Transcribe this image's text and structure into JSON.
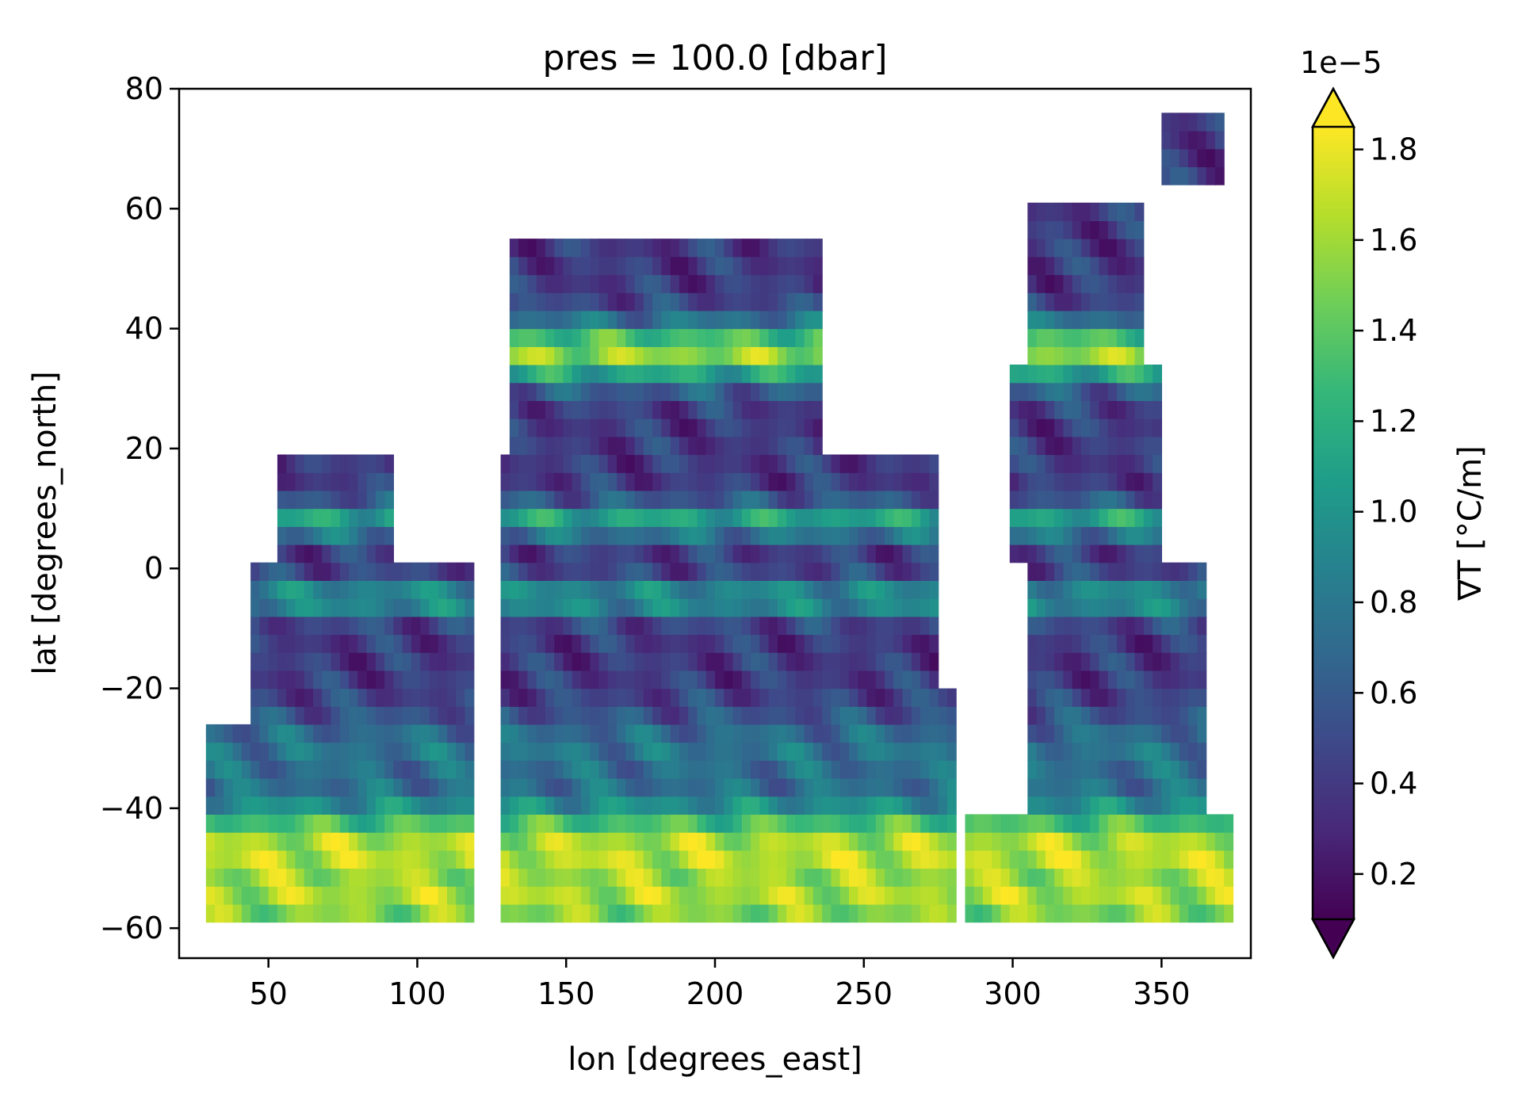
{
  "chart_data": {
    "type": "heatmap",
    "title": "pres = 100.0 [dbar]",
    "xlabel": "lon [degrees_east]",
    "ylabel": "lat [degrees_north]",
    "xlim": [
      20,
      380
    ],
    "ylim": [
      -65,
      80
    ],
    "xticks": [
      50,
      100,
      150,
      200,
      250,
      300,
      350
    ],
    "xtick_labels": [
      "50",
      "100",
      "150",
      "200",
      "250",
      "300",
      "350"
    ],
    "yticks": [
      80,
      60,
      40,
      20,
      0,
      -20,
      -40,
      -60
    ],
    "ytick_labels": [
      "80",
      "60",
      "40",
      "20",
      "0",
      "−20",
      "−40",
      "−60"
    ],
    "colorbar": {
      "label": "∇T [°C/m]",
      "multiplier": "1e−5",
      "range": [
        0.1,
        1.85
      ],
      "extend": "both",
      "colormap": "viridis",
      "ticks": [
        0.2,
        0.4,
        0.6,
        0.8,
        1.0,
        1.2,
        1.4,
        1.6,
        1.8
      ],
      "tick_labels": [
        "0.2",
        "0.4",
        "0.6",
        "0.8",
        "1.0",
        "1.2",
        "1.4",
        "1.6",
        "1.8"
      ]
    },
    "colormap_stops": [
      "#440154",
      "#482878",
      "#3e4989",
      "#31688e",
      "#26828e",
      "#1f9e89",
      "#35b779",
      "#6ece58",
      "#b5de2b",
      "#fde725"
    ],
    "grid": false,
    "field": {
      "lon_step": 3,
      "lat_step": 3,
      "regions": [
        {
          "lon": [
            30,
            120
          ],
          "lat": [
            -60,
            -25
          ]
        },
        {
          "lon": [
            45,
            118
          ],
          "lat": [
            -25,
            0
          ]
        },
        {
          "lon": [
            52,
            92
          ],
          "lat": [
            0,
            20
          ]
        },
        {
          "lon": [
            128,
            275
          ],
          "lat": [
            -60,
            20
          ]
        },
        {
          "lon": [
            130,
            235
          ],
          "lat": [
            20,
            55
          ]
        },
        {
          "lon": [
            152,
            282
          ],
          "lat": [
            -60,
            -20
          ]
        },
        {
          "lon": [
            285,
            375
          ],
          "lat": [
            -60,
            -40
          ]
        },
        {
          "lon": [
            305,
            365
          ],
          "lat": [
            -40,
            0
          ]
        },
        {
          "lon": [
            298,
            350
          ],
          "lat": [
            0,
            35
          ]
        },
        {
          "lon": [
            305,
            345
          ],
          "lat": [
            35,
            60
          ]
        },
        {
          "lon": [
            350,
            370
          ],
          "lat": [
            65,
            75
          ]
        }
      ],
      "bands": [
        {
          "lat": -47,
          "width": 8,
          "value": 1.8
        },
        {
          "lat": -57,
          "width": 5,
          "value": 1.4
        },
        {
          "lat": 36,
          "width": 5,
          "value": 1.7
        },
        {
          "lat": 8,
          "width": 3,
          "value": 1.2
        },
        {
          "lat": -5,
          "width": 3,
          "value": 1.1
        },
        {
          "lat": -30,
          "width": 6,
          "value": 0.8
        }
      ],
      "base_value": 0.4
    }
  }
}
